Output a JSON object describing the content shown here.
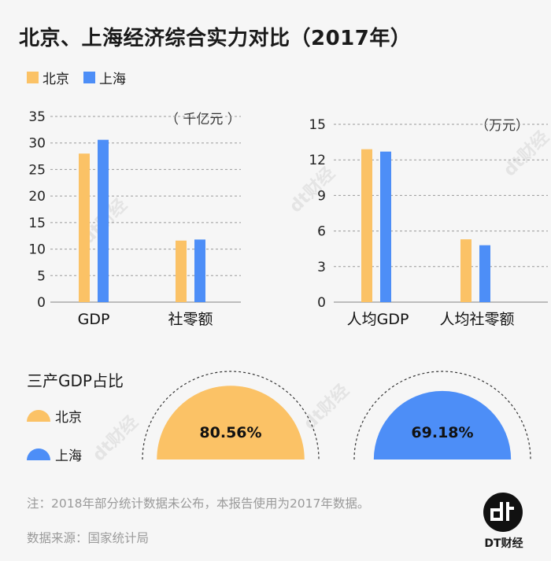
{
  "title": "北京、上海经济综合实力对比（2017年）",
  "colors": {
    "beijing": "#fbc266",
    "shanghai": "#4d8ef7",
    "grid": "#9a9a9a"
  },
  "legend": [
    {
      "label": "北京",
      "color": "#fbc266"
    },
    {
      "label": "上海",
      "color": "#4d8ef7"
    }
  ],
  "chart_data": [
    {
      "type": "bar",
      "unit": "（ 千亿元 ）",
      "categories": [
        "GDP",
        "社零额"
      ],
      "series": [
        {
          "name": "北京",
          "values": [
            28.0,
            11.6
          ]
        },
        {
          "name": "上海",
          "values": [
            30.6,
            11.8
          ]
        }
      ],
      "yticks": [
        0,
        5,
        10,
        15,
        20,
        25,
        30,
        35
      ],
      "ylim": [
        0,
        35
      ]
    },
    {
      "type": "bar",
      "unit": "（万元）",
      "categories": [
        "人均GDP",
        "人均社零额"
      ],
      "series": [
        {
          "name": "北京",
          "values": [
            12.9,
            5.3
          ]
        },
        {
          "name": "上海",
          "values": [
            12.7,
            4.8
          ]
        }
      ],
      "yticks": [
        0,
        3,
        6,
        9,
        12,
        15
      ],
      "ylim": [
        0,
        15
      ]
    },
    {
      "type": "pie",
      "title": "三产GDP占比",
      "legend": [
        "北京",
        "上海"
      ],
      "values": [
        {
          "name": "北京",
          "value": 80.56,
          "label": "80.56%"
        },
        {
          "name": "上海",
          "value": 69.18,
          "label": "69.18%"
        }
      ]
    }
  ],
  "note": "注：2018年部分统计数据未公布，本报告使用为2017年数据。",
  "source": "数据来源：国家统计局",
  "logo": {
    "mark": "dt",
    "text": "DT财经"
  },
  "watermark": "dt财经"
}
